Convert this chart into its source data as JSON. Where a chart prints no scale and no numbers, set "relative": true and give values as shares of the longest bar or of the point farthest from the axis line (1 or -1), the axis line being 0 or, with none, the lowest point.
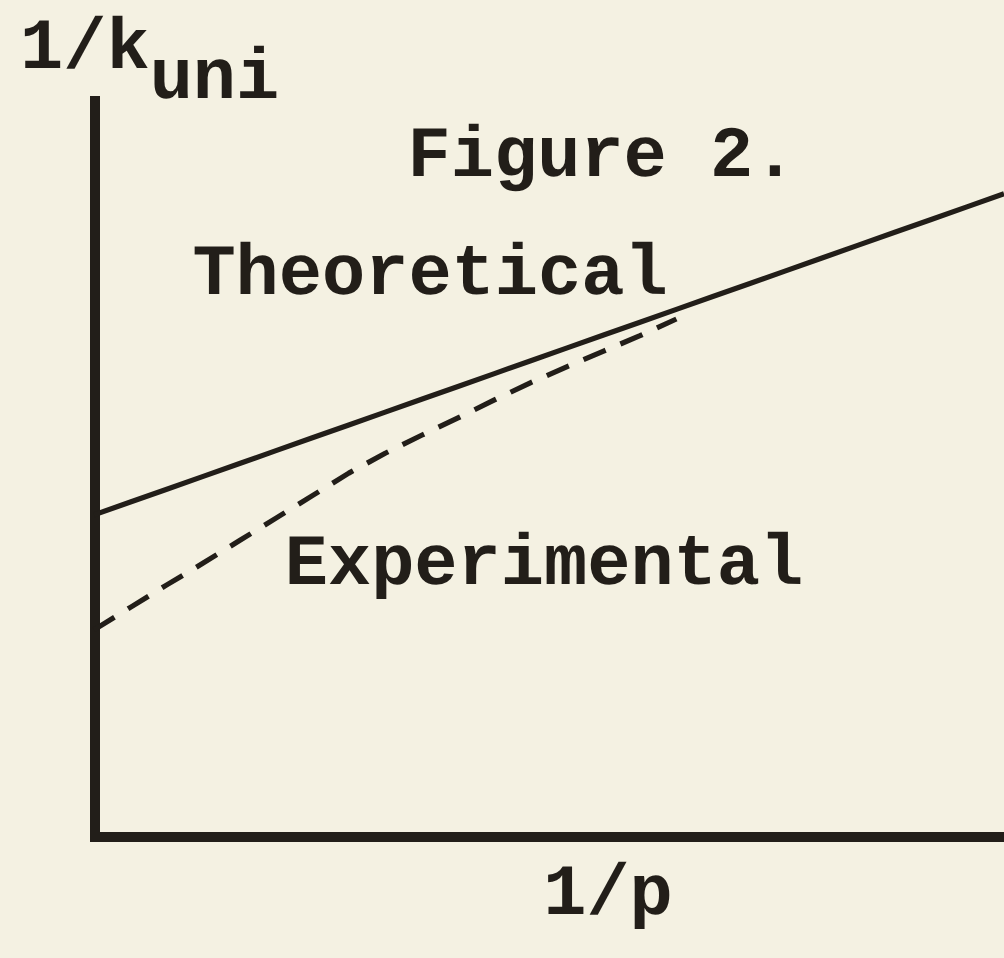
{
  "chart_data": {
    "type": "line",
    "title": "Figure 2.",
    "xlabel": "1/p",
    "ylabel": "1/k$_{uni}$",
    "relative": true,
    "categories": [
      null,
      null,
      null,
      null,
      null,
      null,
      null,
      null,
      null,
      null,
      null,
      null,
      null,
      null,
      null,
      null,
      null,
      null,
      null,
      null,
      null,
      null,
      null,
      null,
      null,
      null
    ],
    "series": [
      {
        "name": "Theoretical",
        "color": "#221e19",
        "line_style": "solid",
        "values": [
          0.5,
          0.52,
          0.54,
          0.56,
          0.58,
          0.6,
          0.62,
          0.64,
          0.66,
          0.68,
          0.7,
          0.72,
          0.74,
          0.76,
          0.78,
          0.8,
          0.82,
          0.84,
          0.86,
          0.88,
          0.9,
          0.92,
          0.94,
          0.96,
          0.98,
          1
        ]
      },
      {
        "name": "Experimental",
        "color": "#221e19",
        "line_style": "dashed",
        "values": [
          0.321,
          0.356,
          0.391,
          0.425,
          0.46,
          0.495,
          0.53,
          0.565,
          0.596,
          0.624,
          0.651,
          0.679,
          0.706,
          0.731,
          0.755,
          0.779,
          0.805,
          null,
          null,
          null,
          null,
          null,
          null,
          null,
          null,
          null
        ]
      }
    ]
  }
}
